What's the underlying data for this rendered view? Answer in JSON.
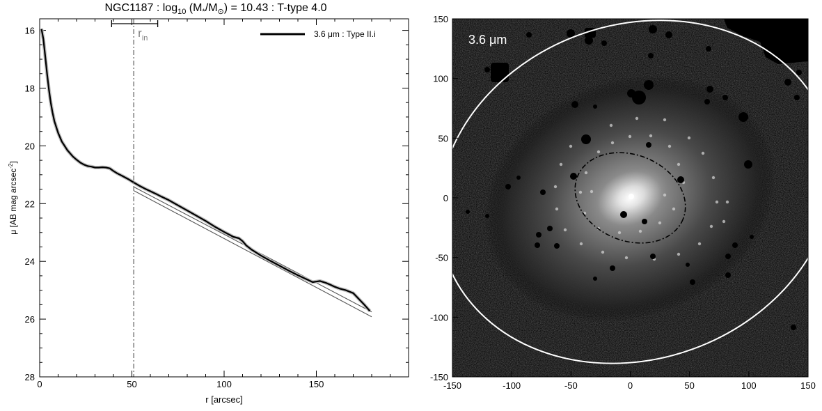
{
  "colors": {
    "profile": "#000000",
    "fit": "#555555",
    "error_band": "#bfbfbf",
    "rin_marker": "#7f7f7f",
    "image_background": "#0c0c0c",
    "outer_ellipse": "#ffffff",
    "inner_ellipse": "#000000"
  },
  "chart_data": [
    {
      "type": "line",
      "title": {
        "prefix": "NGC1187 : log",
        "sub": "10",
        "middle": " (M",
        "star_sub": "*",
        "slash": "/M",
        "sun_sub": "⊙",
        "suffix": ") = 10.43 : T-type 4.0"
      },
      "xlabel": "r [arcsec]",
      "ylabel": {
        "main": "μ [AB mag arcsec",
        "sup": "-2",
        "close": "]"
      },
      "xlim": [
        0,
        200
      ],
      "ylim": [
        28,
        15.6
      ],
      "y_inverted": true,
      "x_ticks": [
        0,
        50,
        100,
        150
      ],
      "y_ticks": [
        16,
        18,
        20,
        22,
        24,
        26,
        28
      ],
      "x_minor_step": 10,
      "y_minor_step": 0.5,
      "legend": {
        "location": "top-right",
        "label": "3.6 μm : Type II.i"
      },
      "rin": {
        "label_main": "r",
        "label_sub": "in",
        "value": 51,
        "err_low": 39,
        "err_high": 64
      },
      "series": [
        {
          "name": "3.6 μm : Type II.i",
          "x": [
            1,
            2,
            3,
            4,
            5,
            6,
            7,
            8,
            10,
            12,
            15,
            18,
            20,
            22,
            24,
            26,
            28,
            30,
            32,
            34,
            36,
            38,
            40,
            42,
            45,
            48,
            51,
            54,
            57,
            60,
            63,
            66,
            70,
            75,
            80,
            85,
            90,
            95,
            100,
            105,
            108,
            110,
            112,
            115,
            120,
            125,
            130,
            135,
            140,
            145,
            148,
            150,
            152,
            155,
            158,
            160,
            163,
            166,
            170,
            173,
            176,
            179
          ],
          "values": [
            15.95,
            16.3,
            16.9,
            17.5,
            18.05,
            18.5,
            18.85,
            19.15,
            19.55,
            19.85,
            20.15,
            20.37,
            20.48,
            20.58,
            20.65,
            20.7,
            20.72,
            20.75,
            20.75,
            20.74,
            20.75,
            20.78,
            20.87,
            20.95,
            21.05,
            21.15,
            21.27,
            21.38,
            21.48,
            21.57,
            21.66,
            21.76,
            21.88,
            22.06,
            22.24,
            22.42,
            22.6,
            22.8,
            22.98,
            23.15,
            23.2,
            23.3,
            23.45,
            23.6,
            23.8,
            23.98,
            24.15,
            24.32,
            24.48,
            24.63,
            24.72,
            24.7,
            24.68,
            24.74,
            24.82,
            24.88,
            24.95,
            25.0,
            25.1,
            25.3,
            25.5,
            25.72
          ]
        },
        {
          "name": "",
          "style": "fit",
          "x": [
            51,
            180
          ],
          "values": [
            21.42,
            25.75
          ]
        },
        {
          "name": "",
          "style": "fit",
          "x": [
            51,
            180
          ],
          "values": [
            21.55,
            25.92
          ]
        }
      ]
    },
    {
      "type": "heatmap",
      "label": "3.6 μm",
      "xlim": [
        -150,
        150
      ],
      "ylim": [
        -150,
        150
      ],
      "x_ticks": [
        -150,
        -100,
        -50,
        0,
        50,
        100,
        150
      ],
      "y_ticks": [
        -150,
        -100,
        -50,
        0,
        50,
        100,
        150
      ],
      "outer_ellipse": {
        "center": [
          5,
          5
        ],
        "semi_major": 170,
        "semi_minor": 140,
        "angle_deg": -20
      },
      "inner_ellipse": {
        "center": [
          0,
          0
        ],
        "semi_major": 48,
        "semi_minor": 36,
        "angle_deg": 22
      }
    }
  ]
}
